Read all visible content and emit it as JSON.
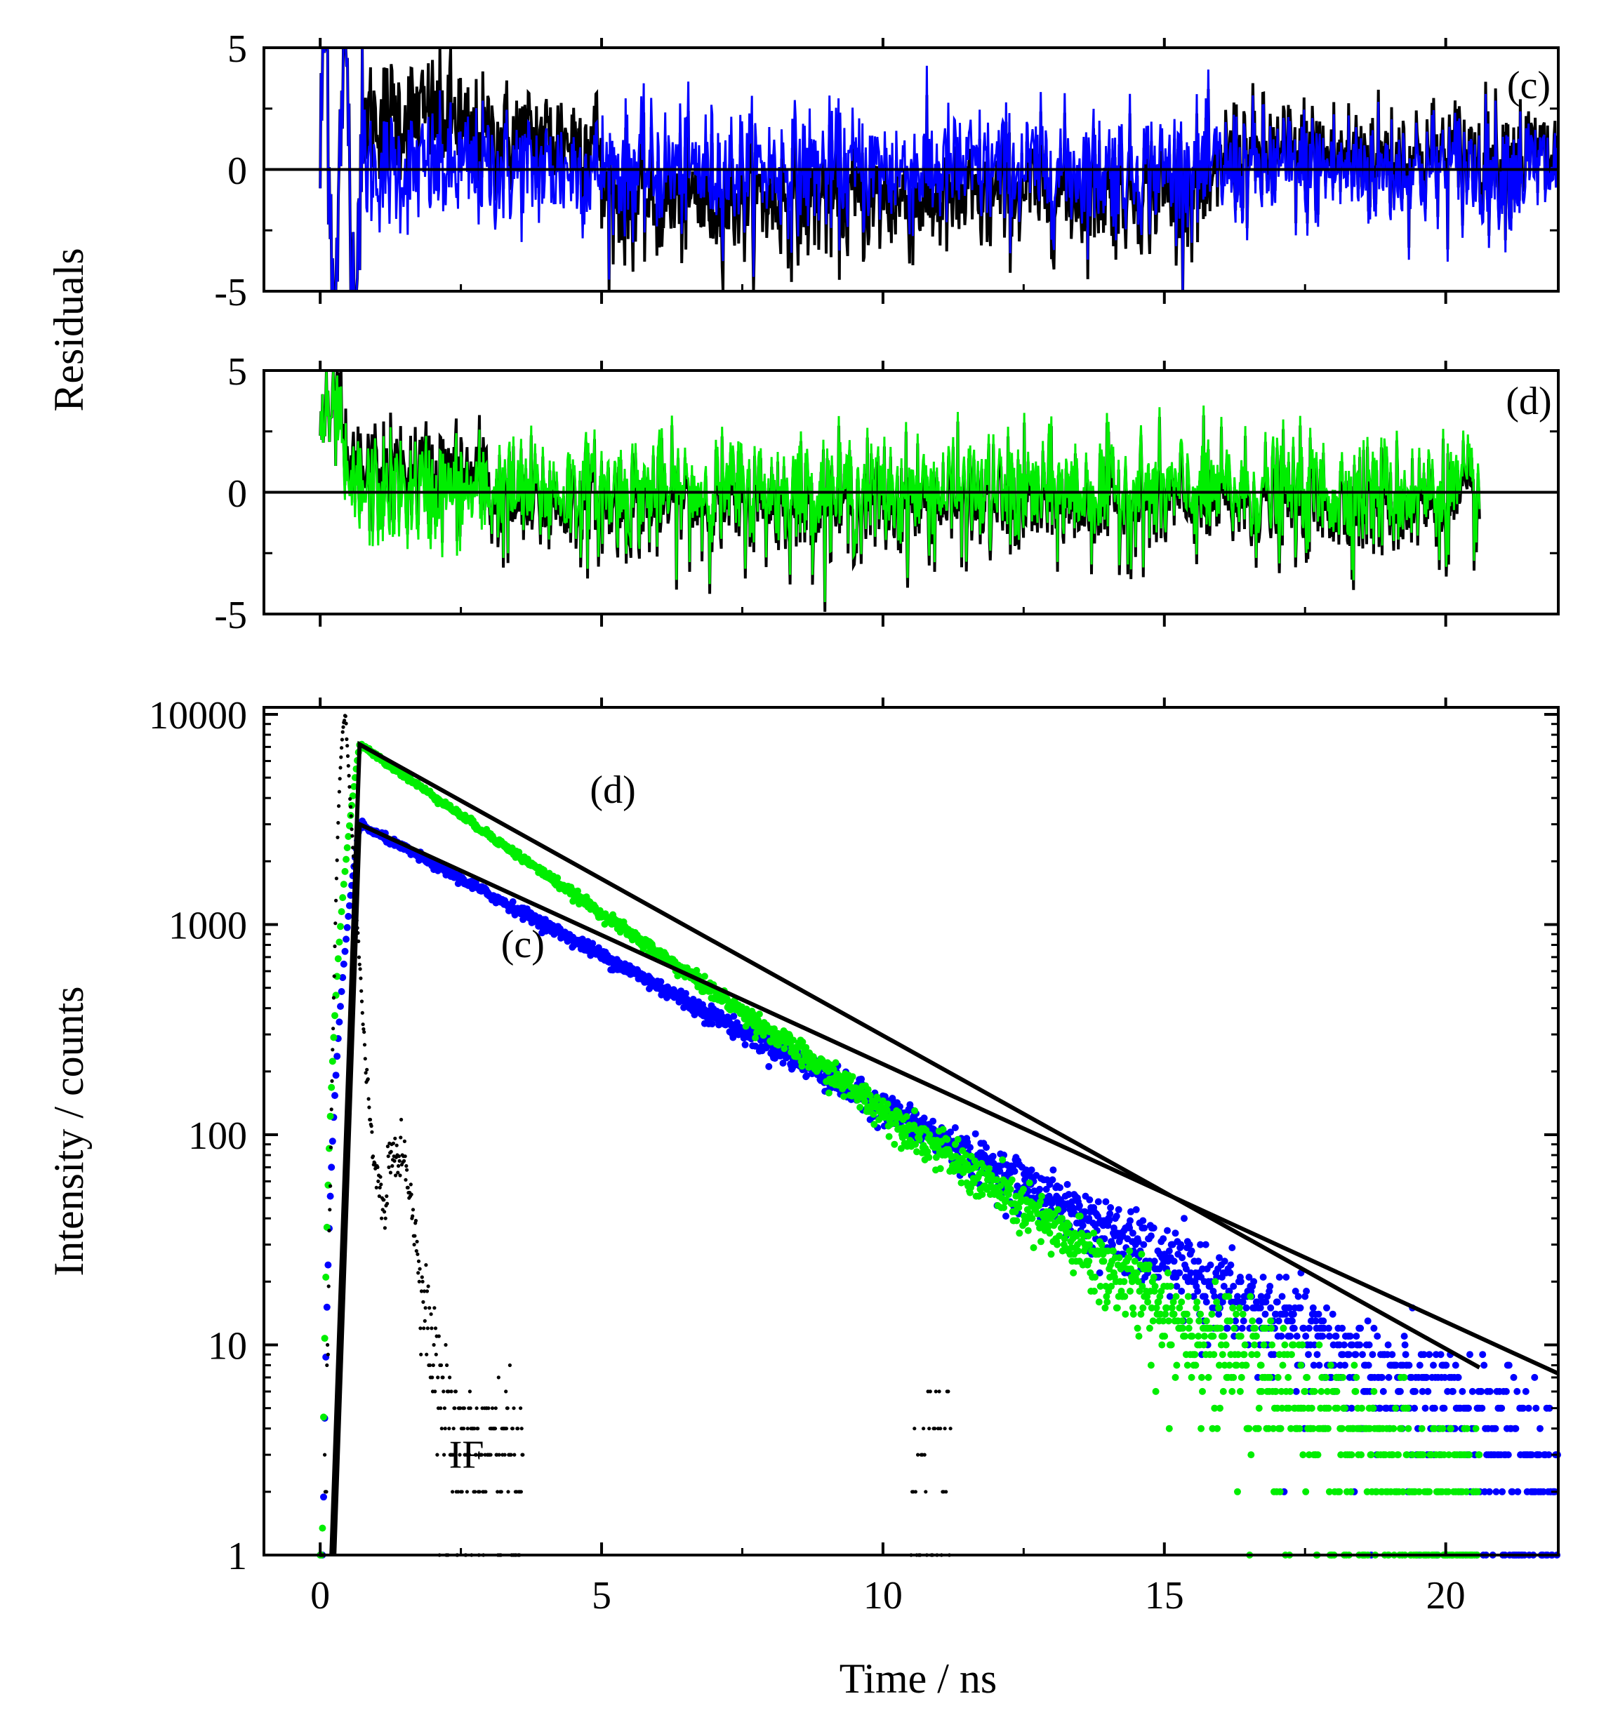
{
  "chart_data": [
    {
      "type": "line",
      "panel": "(c)",
      "ylabel": "Residuals",
      "xlim": [
        -1,
        22
      ],
      "ylim": [
        -5,
        5
      ],
      "yticks": [
        5,
        0,
        -5
      ],
      "ytick_labels": [
        "5",
        "0",
        "-5"
      ],
      "series": [
        {
          "name": "residuals-black",
          "color": "#000000"
        },
        {
          "name": "residuals-blue",
          "color": "#0000ff"
        }
      ],
      "zero_line": true
    },
    {
      "type": "line",
      "panel": "(d)",
      "ylabel": "Residuals",
      "xlim": [
        -1,
        22
      ],
      "ylim": [
        -5,
        5
      ],
      "yticks": [
        5,
        0,
        -5
      ],
      "ytick_labels": [
        "5",
        "0",
        "-5"
      ],
      "series": [
        {
          "name": "residuals-black",
          "color": "#000000"
        },
        {
          "name": "residuals-green",
          "color": "#00ee00"
        }
      ],
      "zero_line": true
    },
    {
      "type": "scatter",
      "yscale": "log",
      "xlabel": "Time / ns",
      "ylabel": "Intensity / counts",
      "xlim": [
        -1,
        22
      ],
      "ylim": [
        1,
        10000
      ],
      "xticks": [
        0,
        5,
        10,
        15,
        20
      ],
      "xtick_labels": [
        "0",
        "5",
        "10",
        "15",
        "20"
      ],
      "yticks": [
        10000,
        1000,
        100,
        10,
        1
      ],
      "ytick_labels": [
        "10000",
        "1000",
        "100",
        "10",
        "1"
      ],
      "annotations": [
        {
          "text": "(d)",
          "x": 5.2,
          "y": 3800
        },
        {
          "text": "(c)",
          "x": 3.6,
          "y": 700
        },
        {
          "text": "IF",
          "x": 2.6,
          "y": 2.6
        }
      ],
      "series": [
        {
          "name": "(d) data",
          "color": "#00ee00",
          "peak_time": 0.7,
          "peak": 7200,
          "lifetime_ns": 2.32,
          "end_time": 20.6
        },
        {
          "name": "(c) data",
          "color": "#0000ff",
          "peak_time": 0.7,
          "peak": 3000,
          "lifetime_ns": 3.0,
          "end_time": 22.0
        },
        {
          "name": "IF",
          "color": "#000000",
          "peak_time": 0.45,
          "peak": 9800
        },
        {
          "name": "(d) fit",
          "color": "#000000",
          "x": [
            0.2,
            0.7,
            20.6
          ],
          "y": [
            1,
            7200,
            7.8
          ]
        },
        {
          "name": "(c) fit",
          "color": "#000000",
          "x": [
            0.25,
            0.7,
            22.0
          ],
          "y": [
            1,
            3000,
            7.3
          ]
        }
      ]
    }
  ]
}
